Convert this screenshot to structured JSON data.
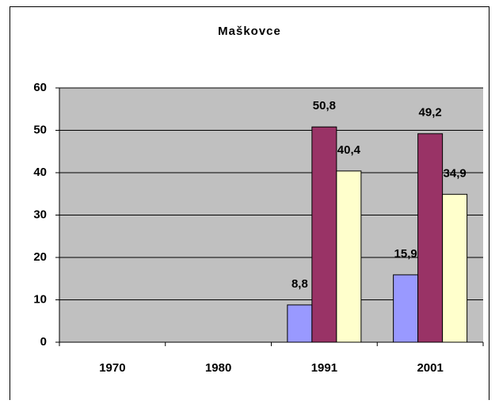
{
  "chart_data": {
    "type": "bar",
    "title": "Maškovce",
    "categories": [
      "1970",
      "1980",
      "1991",
      "2001"
    ],
    "series": [
      {
        "color": "#9999ff",
        "values": [
          null,
          null,
          8.8,
          15.9
        ],
        "value_labels": [
          null,
          null,
          "8,8",
          "15,9"
        ]
      },
      {
        "color": "#993366",
        "values": [
          null,
          null,
          50.8,
          49.2
        ],
        "value_labels": [
          null,
          null,
          "50,8",
          "49,2"
        ]
      },
      {
        "color": "#ffffcc",
        "values": [
          null,
          null,
          40.4,
          34.9
        ],
        "value_labels": [
          null,
          null,
          "40,4",
          "34,9"
        ]
      }
    ],
    "ylim": [
      0,
      60
    ],
    "yticks": [
      0,
      10,
      20,
      30,
      40,
      50,
      60
    ],
    "grid": true,
    "plot_background": "#c0c0c0"
  }
}
